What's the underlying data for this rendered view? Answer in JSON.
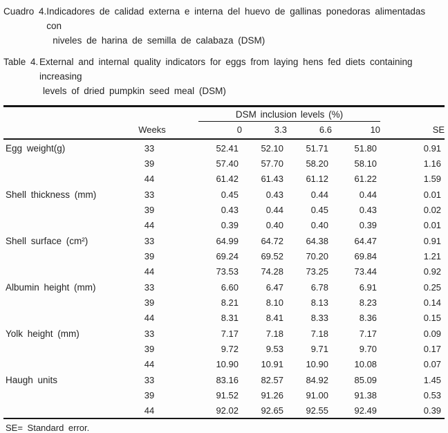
{
  "titles": {
    "spanish": {
      "label": "Cuadro 4.",
      "line1": "Indicadores de calidad externa e interna del huevo de gallinas ponedoras alimentadas con",
      "line2": "niveles de harina de semilla de calabaza (DSM)"
    },
    "english": {
      "label": "Table 4.",
      "line1": "External and internal quality indicators for eggs from laying hens fed diets containing increasing",
      "line2": "levels of dried pumpkin seed meal (DSM)"
    }
  },
  "table": {
    "span_header": "DSM inclusion levels (%)",
    "weeks_header": "Weeks",
    "level_headers": [
      "0",
      "3.3",
      "6.6",
      "10"
    ],
    "se_header": "SE",
    "groups": [
      {
        "parameter": "Egg weight(g)",
        "rows": [
          {
            "weeks": "33",
            "values": [
              "52.41",
              "52.10",
              "51.71",
              "51.80"
            ],
            "se": "0.91"
          },
          {
            "weeks": "39",
            "values": [
              "57.40",
              "57.70",
              "58.20",
              "58.10"
            ],
            "se": "1.16"
          },
          {
            "weeks": "44",
            "values": [
              "61.42",
              "61.43",
              "61.12",
              "61.22"
            ],
            "se": "1.59"
          }
        ]
      },
      {
        "parameter": "Shell thickness (mm)",
        "rows": [
          {
            "weeks": "33",
            "values": [
              "0.45",
              "0.43",
              "0.44",
              "0.44"
            ],
            "se": "0.01"
          },
          {
            "weeks": "39",
            "values": [
              "0.43",
              "0.44",
              "0.45",
              "0.43"
            ],
            "se": "0.02"
          },
          {
            "weeks": "44",
            "values": [
              "0.39",
              "0.40",
              "0.40",
              "0.39"
            ],
            "se": "0.01"
          }
        ]
      },
      {
        "parameter": "Shell surface (cm²)",
        "rows": [
          {
            "weeks": "33",
            "values": [
              "64.99",
              "64.72",
              "64.38",
              "64.47"
            ],
            "se": "0.91"
          },
          {
            "weeks": "39",
            "values": [
              "69.24",
              "69.52",
              "70.20",
              "69.84"
            ],
            "se": "1.21"
          },
          {
            "weeks": "44",
            "values": [
              "73.53",
              "74.28",
              "73.25",
              "73.44"
            ],
            "se": "0.92"
          }
        ]
      },
      {
        "parameter": "Albumin height (mm)",
        "rows": [
          {
            "weeks": "33",
            "values": [
              "6.60",
              "6.47",
              "6.78",
              "6.91"
            ],
            "se": "0.25"
          },
          {
            "weeks": "39",
            "values": [
              "8.21",
              "8.10",
              "8.13",
              "8.23"
            ],
            "se": "0.14"
          },
          {
            "weeks": "44",
            "values": [
              "8.31",
              "8.41",
              "8.33",
              "8.36"
            ],
            "se": "0.15"
          }
        ]
      },
      {
        "parameter": "Yolk height (mm)",
        "rows": [
          {
            "weeks": "33",
            "values": [
              "7.17",
              "7.18",
              "7.18",
              "7.17"
            ],
            "se": "0.09"
          },
          {
            "weeks": "39",
            "values": [
              "9.72",
              "9.53",
              "9.71",
              "9.70"
            ],
            "se": "0.17"
          },
          {
            "weeks": "44",
            "values": [
              "10.90",
              "10.91",
              "10.90",
              "10.08"
            ],
            "se": "0.07"
          }
        ]
      },
      {
        "parameter": "Haugh units",
        "rows": [
          {
            "weeks": "33",
            "values": [
              "83.16",
              "82.57",
              "84.92",
              "85.09"
            ],
            "se": "1.45"
          },
          {
            "weeks": "39",
            "values": [
              "91.52",
              "91.26",
              "91.00",
              "91.38"
            ],
            "se": "0.53"
          },
          {
            "weeks": "44",
            "values": [
              "92.02",
              "92.65",
              "92.55",
              "92.49"
            ],
            "se": "0.39"
          }
        ]
      }
    ]
  },
  "footnote": "SE= Standard error.",
  "colors": {
    "text": "#242424",
    "rule": "#161616",
    "background": "#fdfdfd"
  }
}
